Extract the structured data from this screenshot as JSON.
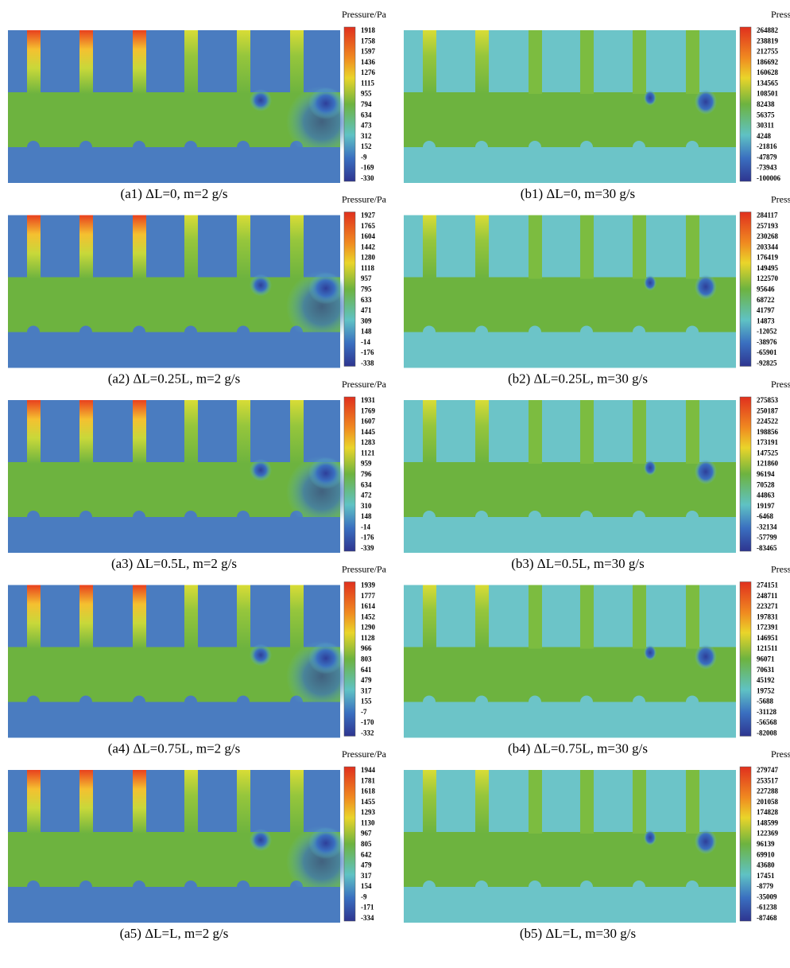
{
  "panels": [
    {
      "caption": "(a1) ΔL=0, m=2 g/s",
      "colorbar_title": "Pressure/Pa",
      "colorbar_labels": [
        1918,
        1758,
        1597,
        1436,
        1276,
        1115,
        955,
        794,
        634,
        473,
        312,
        152,
        -9,
        -169,
        -330
      ]
    },
    {
      "caption": "(b1) ΔL=0, m=30 g/s",
      "colorbar_title": "Pressure/Pa",
      "colorbar_labels": [
        264882,
        238819,
        212755,
        186692,
        160628,
        134565,
        108501,
        82438,
        56375,
        30311,
        4248,
        -21816,
        -47879,
        -73943,
        -100006
      ]
    },
    {
      "caption": "(a2) ΔL=0.25L, m=2 g/s",
      "colorbar_title": "Pressure/Pa",
      "colorbar_labels": [
        1927,
        1765,
        1604,
        1442,
        1280,
        1118,
        957,
        795,
        633,
        471,
        309,
        148,
        -14,
        -176,
        -338
      ]
    },
    {
      "caption": "(b2) ΔL=0.25L, m=30 g/s",
      "colorbar_title": "Pressure/Pa",
      "colorbar_labels": [
        284117,
        257193,
        230268,
        203344,
        176419,
        149495,
        122570,
        95646,
        68722,
        41797,
        14873,
        -12052,
        -38976,
        -65901,
        -92825
      ]
    },
    {
      "caption": "(a3) ΔL=0.5L, m=2 g/s",
      "colorbar_title": "Pressure/Pa",
      "colorbar_labels": [
        1931,
        1769,
        1607,
        1445,
        1283,
        1121,
        959,
        796,
        634,
        472,
        310,
        148,
        -14,
        -176,
        -339
      ]
    },
    {
      "caption": "(b3) ΔL=0.5L, m=30 g/s",
      "colorbar_title": "Pressure/Pa",
      "colorbar_labels": [
        275853,
        250187,
        224522,
        198856,
        173191,
        147525,
        121860,
        96194,
        70528,
        44863,
        19197,
        -6468,
        -32134,
        -57799,
        -83465
      ]
    },
    {
      "caption": "(a4) ΔL=0.75L, m=2 g/s",
      "colorbar_title": "Pressure/Pa",
      "colorbar_labels": [
        1939,
        1777,
        1614,
        1452,
        1290,
        1128,
        966,
        803,
        641,
        479,
        317,
        155,
        -7,
        -170,
        -332
      ]
    },
    {
      "caption": "(b4) ΔL=0.75L, m=30 g/s",
      "colorbar_title": "Pressure/Pa",
      "colorbar_labels": [
        274151,
        248711,
        223271,
        197831,
        172391,
        146951,
        121511,
        96071,
        70631,
        45192,
        19752,
        -5688,
        -31128,
        -56568,
        -82008
      ]
    },
    {
      "caption": "(a5) ΔL=L, m=2 g/s",
      "colorbar_title": "Pressure/Pa",
      "colorbar_labels": [
        1944,
        1781,
        1618,
        1455,
        1293,
        1130,
        967,
        805,
        642,
        479,
        317,
        154,
        -9,
        -171,
        -334
      ]
    },
    {
      "caption": "(b5) ΔL=L, m=30 g/s",
      "colorbar_title": "Pressure/Pa",
      "colorbar_labels": [
        279747,
        253517,
        227288,
        201058,
        174828,
        148599,
        122369,
        96139,
        69910,
        43680,
        17451,
        -8779,
        -35009,
        -61238,
        -87468
      ]
    }
  ]
}
